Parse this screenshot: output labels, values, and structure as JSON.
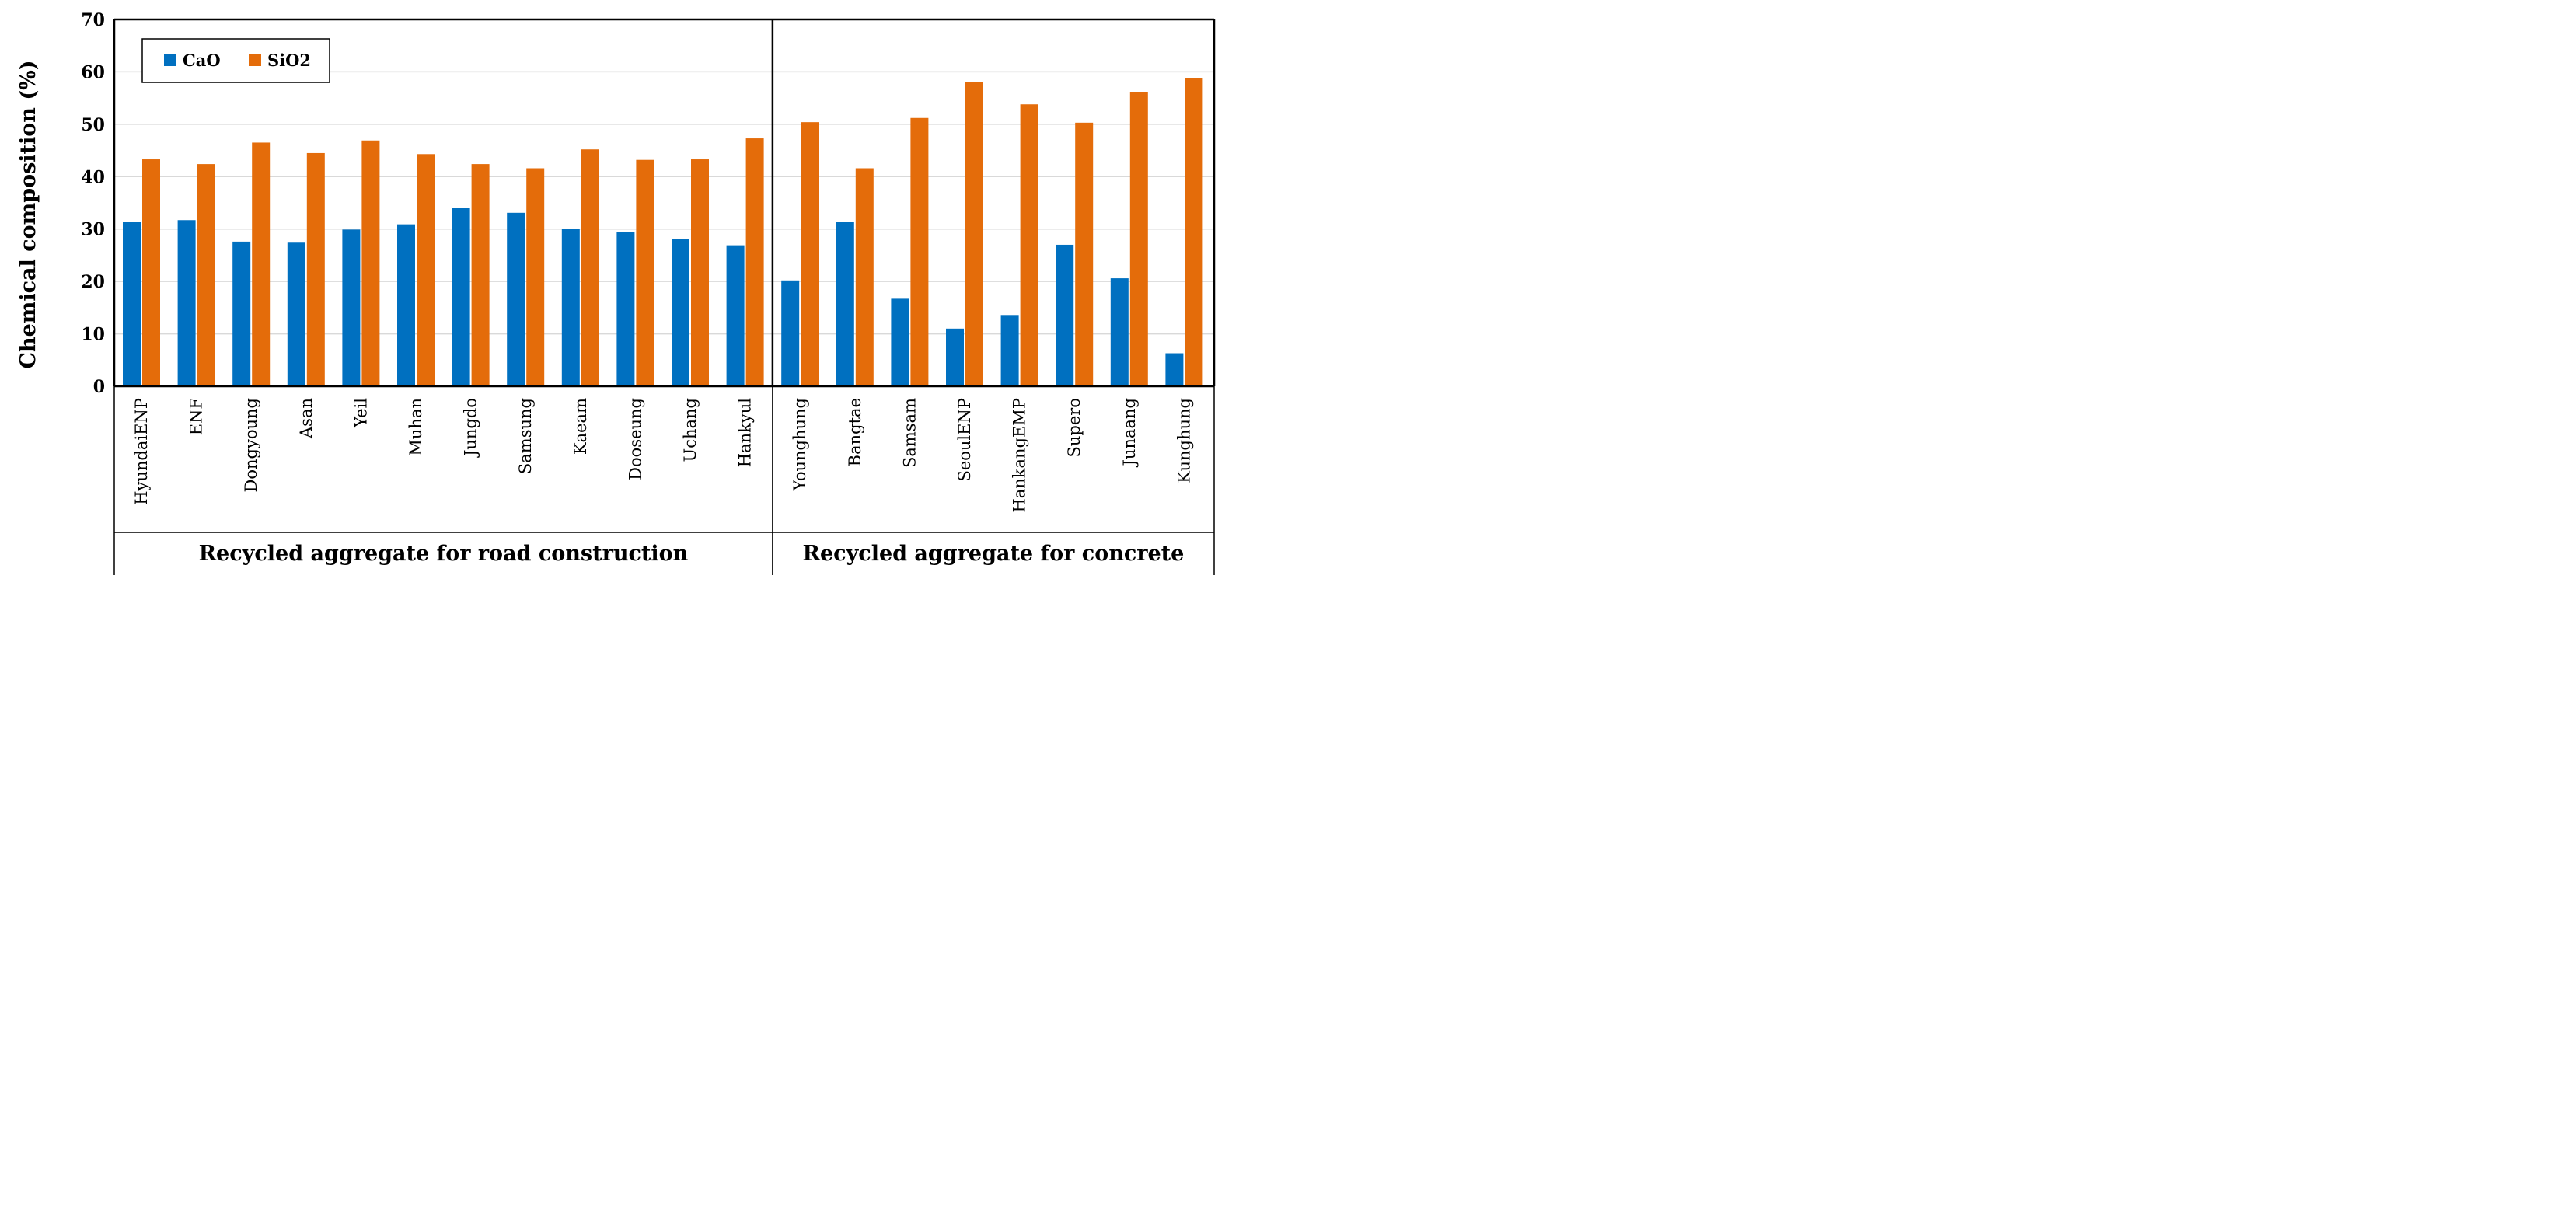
{
  "chart_data": {
    "type": "bar",
    "ylabel": "Chemical composition (%)",
    "ylim": [
      0,
      70
    ],
    "yticks": [
      0,
      10,
      20,
      30,
      40,
      50,
      60,
      70
    ],
    "grid": true,
    "legend_position": "top-left",
    "categories": [
      "HyundaiENP",
      "ENF",
      "Dongyoung",
      "Asan",
      "Yeil",
      "Muhan",
      "Jungdo",
      "Samsung",
      "Kaeam",
      "Dooseung",
      "Uchang",
      "Hankyul",
      "Younghung",
      "Bangtae",
      "Samsam",
      "SeoulENP",
      "HankangEMP",
      "Supero",
      "Junaang",
      "Kunghung"
    ],
    "series": [
      {
        "name": "CaO",
        "color": "#0070C0",
        "values": [
          31.3,
          31.7,
          27.6,
          27.4,
          29.9,
          30.9,
          34.0,
          33.1,
          30.1,
          29.4,
          28.1,
          26.9,
          20.2,
          31.4,
          16.7,
          11.0,
          13.6,
          27.0,
          20.6,
          6.3
        ]
      },
      {
        "name": "SiO2",
        "color": "#E46C0A",
        "values": [
          43.3,
          42.4,
          46.5,
          44.5,
          46.9,
          44.3,
          42.4,
          41.6,
          45.2,
          43.2,
          43.3,
          47.3,
          50.4,
          41.6,
          51.2,
          58.1,
          53.8,
          50.3,
          56.1,
          58.8
        ]
      }
    ],
    "groups": [
      {
        "label": "Recycled aggregate for road construction",
        "count": 12
      },
      {
        "label": "Recycled aggregate for concrete",
        "count": 8
      }
    ]
  }
}
